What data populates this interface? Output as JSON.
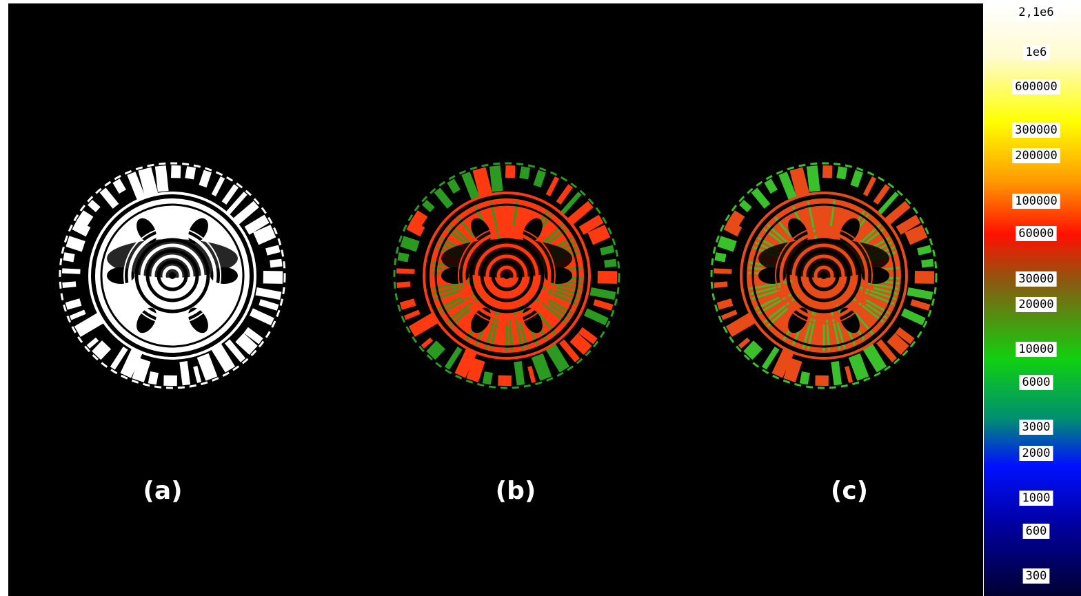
{
  "panels": [
    {
      "label": "(a)"
    },
    {
      "label": "(b)"
    },
    {
      "label": "(c)"
    }
  ],
  "colorbar": {
    "labels": [
      "2,1e6",
      "1e6",
      "600000",
      "300000",
      "200000",
      "100000",
      "60000",
      "30000",
      "20000",
      "10000",
      "6000",
      "3000",
      "2000",
      "1000",
      "600",
      "300"
    ]
  }
}
